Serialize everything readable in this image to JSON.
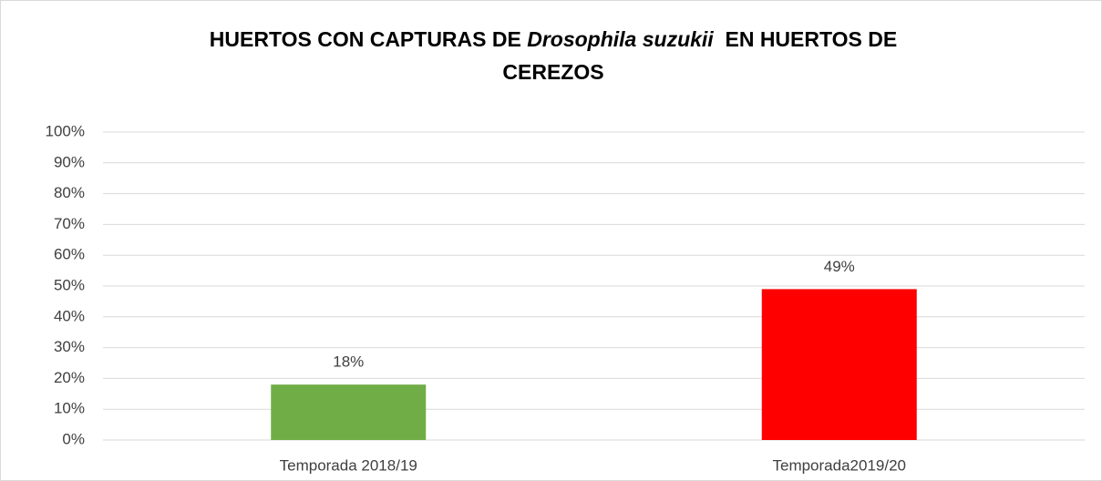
{
  "chart_data": {
    "type": "bar",
    "title": [
      "HUERTOS CON CAPTURAS DE ",
      "Drosophila suzukii",
      "  EN HUERTOS DE",
      "CEREZOS"
    ],
    "categories": [
      "Temporada 2018/19",
      "Temporada2019/20"
    ],
    "values": [
      18,
      49
    ],
    "value_labels": [
      "18%",
      "49%"
    ],
    "colors": [
      "#70ad47",
      "#ff0000"
    ],
    "ylim": [
      0,
      100
    ],
    "yticks": [
      {
        "value": 0,
        "label": "0%"
      },
      {
        "value": 10,
        "label": "10%"
      },
      {
        "value": 20,
        "label": "20%"
      },
      {
        "value": 30,
        "label": "30%"
      },
      {
        "value": 40,
        "label": "40%"
      },
      {
        "value": 50,
        "label": "50%"
      },
      {
        "value": 60,
        "label": "60%"
      },
      {
        "value": 70,
        "label": "70%"
      },
      {
        "value": 80,
        "label": "80%"
      },
      {
        "value": 90,
        "label": "90%"
      },
      {
        "value": 100,
        "label": "100%"
      }
    ],
    "grid": true
  }
}
